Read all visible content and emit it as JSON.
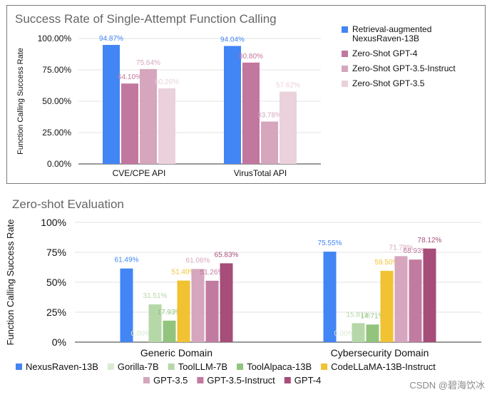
{
  "colors": {
    "nexusraven": "#4285f4",
    "gpt4_zero": "#c2779f",
    "gpt35_instruct_zero": "#d5a6bd",
    "gpt35_zero": "#ead1dc",
    "gorilla": "#d9ead3",
    "toolllm": "#b6d7a8",
    "toolalpaca": "#93c47d",
    "codellama": "#f1c232",
    "gpt35": "#d5a6bd",
    "gpt35_instruct": "#c27ba0",
    "gpt4": "#a64d79"
  },
  "chart_data": [
    {
      "type": "bar",
      "title": "Success Rate of Single-Attempt Function Calling",
      "ylabel": "Function Calling Success Rate",
      "xlabel": "",
      "ylim": [
        0,
        100
      ],
      "yticks": [
        "0.00%",
        "25.00%",
        "50.00%",
        "75.00%",
        "100.00%"
      ],
      "categories": [
        "CVE/CPE API",
        "VirusTotal API"
      ],
      "legend_position": "right",
      "series": [
        {
          "name": "Retrieval-augmented NexusRaven-13B",
          "legend_lines": [
            "Retrieval-augmented",
            "NexusRaven-13B"
          ],
          "color_key": "nexusraven",
          "values": [
            94.87,
            94.04
          ],
          "labels": [
            "94.87%",
            "94.04%"
          ]
        },
        {
          "name": "Zero-Shot GPT-4",
          "legend_lines": [
            "Zero-Shot GPT-4"
          ],
          "color_key": "gpt4_zero",
          "values": [
            64.1,
            80.8
          ],
          "labels": [
            "64.10%",
            "80.80%"
          ]
        },
        {
          "name": "Zero-Shot GPT-3.5-Instruct",
          "legend_lines": [
            "Zero-Shot GPT-3.5-Instruct"
          ],
          "color_key": "gpt35_instruct_zero",
          "values": [
            75.64,
            33.78
          ],
          "labels": [
            "75.64%",
            "33.78%"
          ]
        },
        {
          "name": "Zero-Shot GPT-3.5",
          "legend_lines": [
            "Zero-Shot GPT-3.5"
          ],
          "color_key": "gpt35_zero",
          "values": [
            60.26,
            57.62
          ],
          "labels": [
            "60.26%",
            "57.62%"
          ]
        }
      ]
    },
    {
      "type": "bar",
      "title": "Zero-shot Evaluation",
      "ylabel": "Function Calling Success Rate",
      "xlabel": "",
      "ylim": [
        0,
        100
      ],
      "yticks": [
        "0%",
        "25%",
        "50%",
        "75%",
        "100%"
      ],
      "categories": [
        "Generic Domain",
        "Cybersecurity Domain"
      ],
      "legend_position": "bottom",
      "series": [
        {
          "name": "NexusRaven-13B",
          "color_key": "nexusraven",
          "values": [
            61.49,
            75.55
          ],
          "labels": [
            "61.49%",
            "75.55%"
          ]
        },
        {
          "name": "Gorilla-7B",
          "color_key": "gorilla",
          "values": [
            0.0,
            0.0
          ],
          "labels": [
            "0.00%",
            "0.00%"
          ]
        },
        {
          "name": "ToolLLM-7B",
          "color_key": "toolllm",
          "values": [
            31.51,
            15.81
          ],
          "labels": [
            "31.51%",
            "15.81%"
          ]
        },
        {
          "name": "ToolAlpaca-13B",
          "color_key": "toolalpaca",
          "values": [
            17.93,
            14.71
          ],
          "labels": [
            "17.93%",
            "14.71%"
          ]
        },
        {
          "name": "CodeLLaMA-13B-Instruct",
          "color_key": "codellama",
          "values": [
            51.4,
            59.5
          ],
          "labels": [
            "51.40%",
            "59.50%"
          ]
        },
        {
          "name": "GPT-3.5",
          "color_key": "gpt35",
          "values": [
            61.06,
            71.78
          ],
          "labels": [
            "61.06%",
            "71.78%"
          ]
        },
        {
          "name": "GPT-3.5-Instruct",
          "color_key": "gpt35_instruct",
          "values": [
            51.26,
            68.93
          ],
          "labels": [
            "51.26%",
            "68.93%"
          ]
        },
        {
          "name": "GPT-4",
          "color_key": "gpt4",
          "values": [
            65.83,
            78.12
          ],
          "labels": [
            "65.83%",
            "78.12%"
          ]
        }
      ]
    }
  ],
  "watermark": "CSDN @碧海饮冰"
}
